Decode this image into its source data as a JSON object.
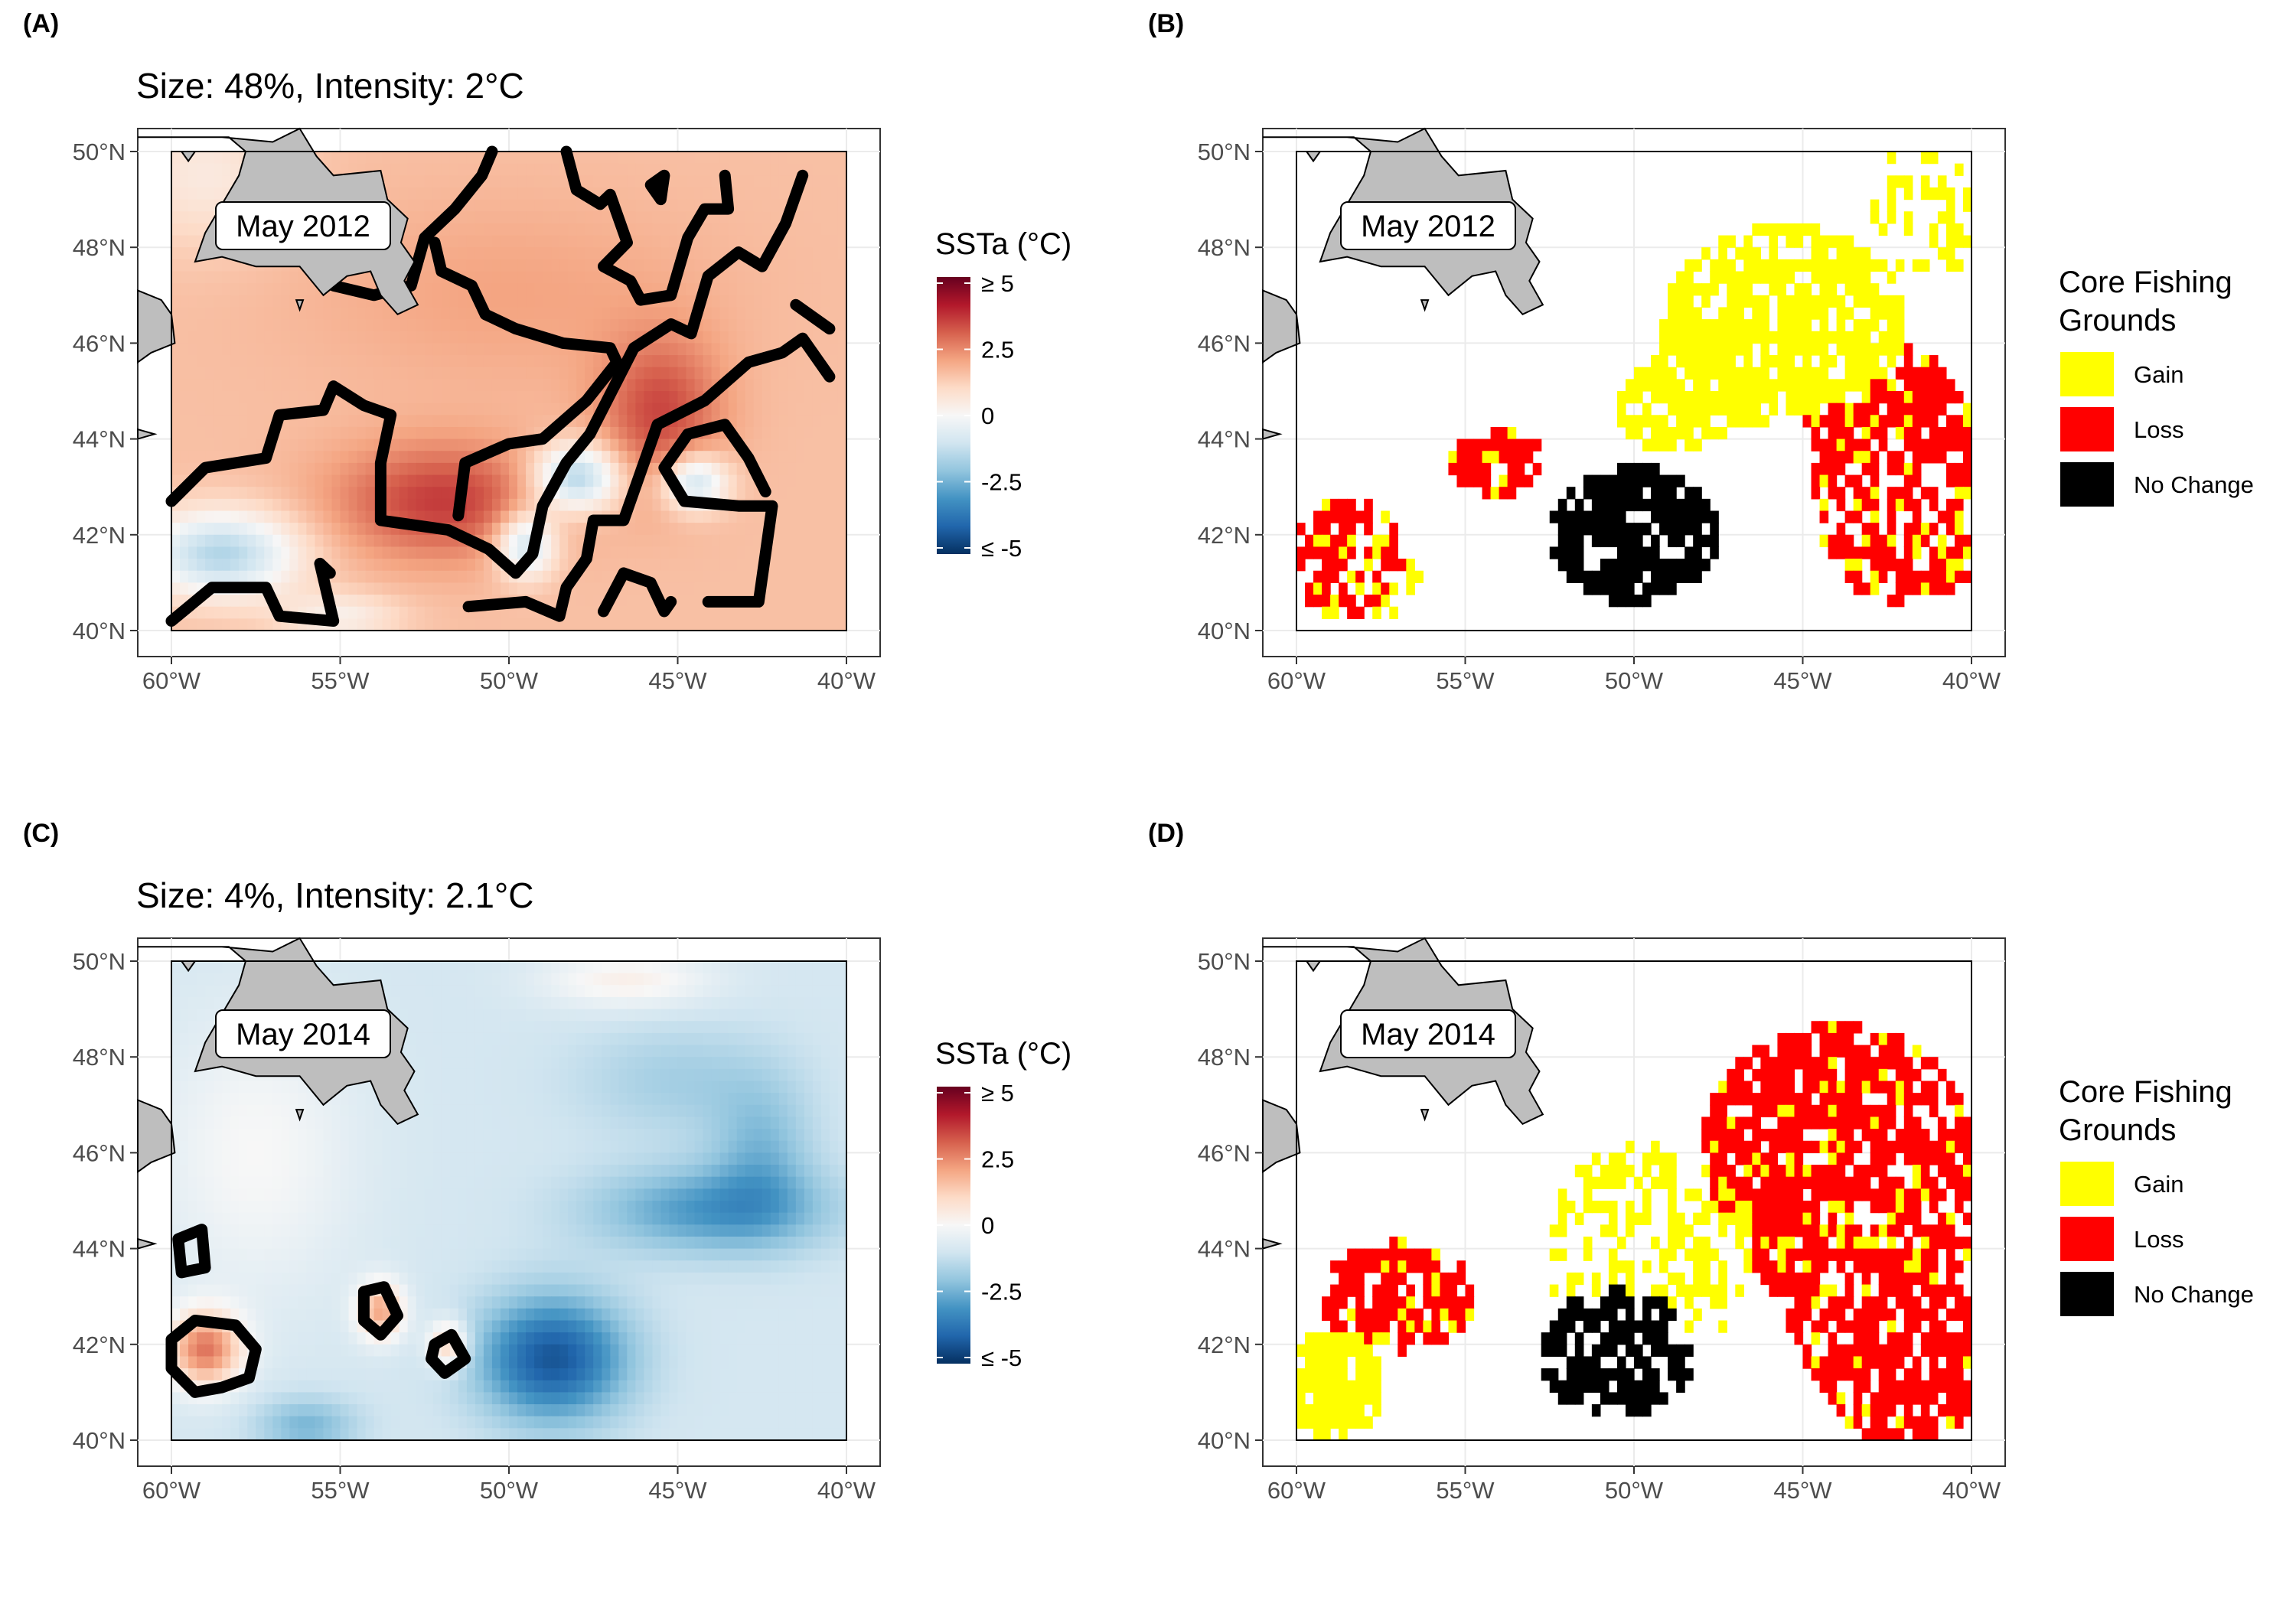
{
  "figure": {
    "panels": [
      {
        "id": "A",
        "label": "(A)",
        "title": "Size: 48%, Intensity: 2°C",
        "date_label": "May 2012",
        "kind": "ssta",
        "chart_data": {
          "type": "heatmap",
          "variable": "SSTa (°C)",
          "x_range": [
            -60,
            -40
          ],
          "y_range": [
            40,
            50
          ],
          "x_ticks": [
            "60°W",
            "55°W",
            "50°W",
            "45°W",
            "40°W"
          ],
          "y_ticks": [
            "40°N",
            "42°N",
            "44°N",
            "46°N",
            "48°N",
            "50°N"
          ],
          "color_range": [
            -5,
            5
          ],
          "marine_heatwave_area_percent": 48,
          "marine_heatwave_intensity_c": 2,
          "anomaly_pattern": "mostly warm (+1 to +3°C), strongest near 52°W 42.5°N and 45°W 44.5°N; cool patches near 59°W 41.5°N, 48°W 43°N, 45°W 43°N"
        }
      },
      {
        "id": "B",
        "label": "(B)",
        "date_label": "May 2012",
        "kind": "fishing",
        "chart_data": {
          "type": "heatmap",
          "variable": "Core Fishing Grounds",
          "categories": [
            "Gain",
            "Loss",
            "No Change"
          ],
          "x_range": [
            -60,
            -40
          ],
          "y_range": [
            40,
            50
          ],
          "x_ticks": [
            "60°W",
            "55°W",
            "50°W",
            "45°W",
            "40°W"
          ],
          "y_ticks": [
            "40°N",
            "42°N",
            "44°N",
            "46°N",
            "48°N",
            "50°N"
          ],
          "pattern": "large gain area north-east (45°W 46°N), no change core around 50°W 42°N, loss in south-west and east"
        }
      },
      {
        "id": "C",
        "label": "(C)",
        "title": "Size: 4%, Intensity: 2.1°C",
        "date_label": "May 2014",
        "kind": "ssta",
        "chart_data": {
          "type": "heatmap",
          "variable": "SSTa (°C)",
          "x_range": [
            -60,
            -40
          ],
          "y_range": [
            40,
            50
          ],
          "x_ticks": [
            "60°W",
            "55°W",
            "50°W",
            "45°W",
            "40°W"
          ],
          "y_ticks": [
            "40°N",
            "42°N",
            "44°N",
            "46°N",
            "48°N",
            "50°N"
          ],
          "color_range": [
            -5,
            5
          ],
          "marine_heatwave_area_percent": 4,
          "marine_heatwave_intensity_c": 2.1,
          "anomaly_pattern": "mostly cool, strongest cold (-4 to -5°C) near 48.5°W 41.5°N along a band toward 42°W 45.5°N; small warm patches near 59°W 42°N, 54°W 42.5°N, 52°W 42°N"
        }
      },
      {
        "id": "D",
        "label": "(D)",
        "date_label": "May 2014",
        "kind": "fishing",
        "chart_data": {
          "type": "heatmap",
          "variable": "Core Fishing Grounds",
          "categories": [
            "Gain",
            "Loss",
            "No Change"
          ],
          "x_range": [
            -60,
            -40
          ],
          "y_range": [
            40,
            50
          ],
          "x_ticks": [
            "60°W",
            "55°W",
            "50°W",
            "45°W",
            "40°W"
          ],
          "y_ticks": [
            "40°N",
            "42°N",
            "44°N",
            "46°N",
            "48°N",
            "50°N"
          ],
          "pattern": "extensive loss across the north-east and east, no change core around 50°W 42°N, gain in the south-west corner and around the core"
        }
      }
    ],
    "ssta_legend": {
      "title": "SSTa (°C)",
      "labels": [
        "≥ 5",
        "2.5",
        "0",
        "-2.5",
        "≤ -5"
      ],
      "colors": [
        "#67001f",
        "#b2182b",
        "#d6604d",
        "#f4a582",
        "#fddbc7",
        "#f7f7f7",
        "#d1e5f0",
        "#92c5de",
        "#4393c3",
        "#2166ac",
        "#053061"
      ]
    },
    "fishing_legend": {
      "title_line1": "Core Fishing",
      "title_line2": "Grounds",
      "items": [
        {
          "label": "Gain",
          "color": "#ffff00"
        },
        {
          "label": "Loss",
          "color": "#ff0000"
        },
        {
          "label": "No Change",
          "color": "#000000"
        }
      ]
    },
    "colors": {
      "land": "#bebebe",
      "gridline": "#ebebeb",
      "contour": "#000000"
    }
  }
}
